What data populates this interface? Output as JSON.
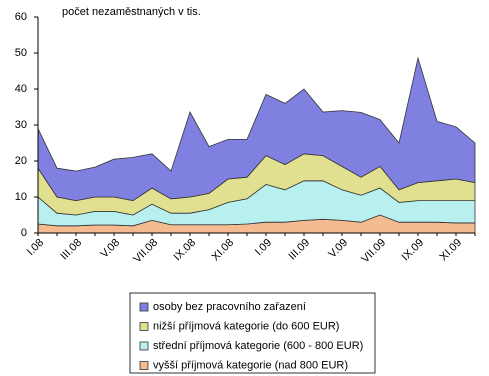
{
  "chart_data": {
    "type": "stacked-area",
    "title": "počet nezaměstnaných v tis.",
    "categories": [
      "I.08",
      null,
      "III.08",
      null,
      "V.08",
      null,
      "VII.08",
      null,
      "IX.08",
      null,
      "XI.08",
      null,
      "I.09",
      null,
      "III.09",
      null,
      "V.09",
      null,
      "VII.09",
      null,
      "IX.09",
      null,
      "XI.09",
      null
    ],
    "series": [
      {
        "name": "osoby bez pracovního zařazení",
        "color": "#8080e0",
        "values": [
          11,
          8,
          8.2,
          8.3,
          10.5,
          12,
          9.5,
          7.7,
          23.6,
          13,
          11,
          10.5,
          17,
          17,
          18,
          12.1,
          15.5,
          18,
          13,
          13,
          34.6,
          16.5,
          14.5,
          11
        ]
      },
      {
        "name": "nižší příjmová kategorie (do 600 EUR)",
        "color": "#e0e090",
        "values": [
          8,
          4.5,
          4,
          4,
          4,
          4,
          4.5,
          4,
          4.5,
          4.5,
          6.5,
          6,
          8,
          7,
          7.5,
          7,
          6.5,
          5,
          6,
          3.5,
          5,
          5.5,
          6,
          5
        ]
      },
      {
        "name": "střední příjmová kategorie (600 - 800 EUR)",
        "color": "#b8f0f0",
        "values": [
          7.5,
          3.5,
          3,
          3.8,
          3.8,
          3,
          4.5,
          3.2,
          3.2,
          4.2,
          6.2,
          7,
          10.5,
          9,
          11,
          10.7,
          8.5,
          7.5,
          7.5,
          5.5,
          6,
          6,
          6.2,
          6.2
        ]
      },
      {
        "name": "vyšší příjmová kategorie (nad 800 EUR)",
        "color": "#f5bb90",
        "values": [
          2.5,
          2,
          2,
          2.2,
          2.2,
          2,
          3.5,
          2.3,
          2.3,
          2.3,
          2.3,
          2.5,
          3,
          3,
          3.5,
          3.8,
          3.5,
          3,
          5,
          3,
          3,
          3,
          2.8,
          2.8
        ]
      }
    ],
    "ylim": [
      0,
      60
    ],
    "yticks": [
      0,
      10,
      20,
      30,
      40,
      50,
      60
    ],
    "grid": false,
    "legend": "bottom"
  }
}
